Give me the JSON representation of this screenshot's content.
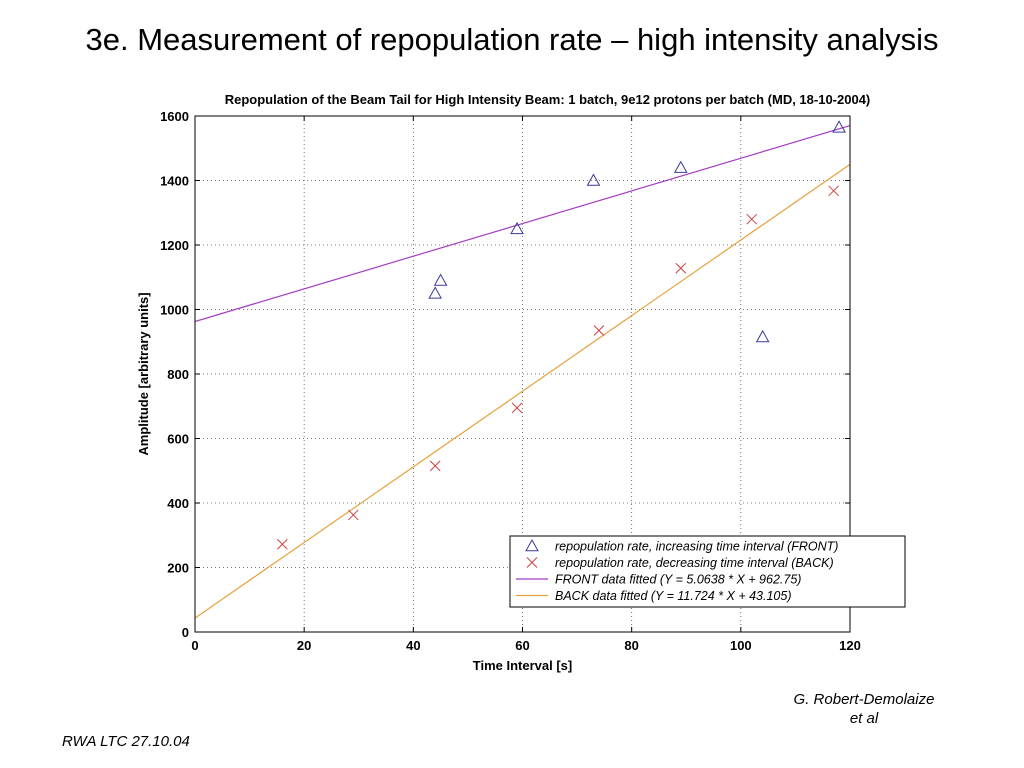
{
  "slide": {
    "title": "3e. Measurement of repopulation rate – high intensity analysis",
    "credit_line1": "G. Robert-Demolaize",
    "credit_line2": "et al",
    "footer": "RWA LTC 27.10.04"
  },
  "chart_data": {
    "type": "scatter",
    "title": "Repopulation of the Beam Tail for High Intensity Beam: 1 batch, 9e12 protons per batch (MD, 18-10-2004)",
    "xlabel": "Time Interval [s]",
    "ylabel": "Amplitude [arbitrary units]",
    "xlim": [
      0,
      120
    ],
    "ylim": [
      0,
      1600
    ],
    "xticks": [
      0,
      20,
      40,
      60,
      80,
      100,
      120
    ],
    "yticks": [
      0,
      200,
      400,
      600,
      800,
      1000,
      1200,
      1400,
      1600
    ],
    "grid": true,
    "legend_position": "bottom-right",
    "series": [
      {
        "name": "repopulation rate, increasing time interval (FRONT)",
        "marker": "triangle",
        "color": "#3a3a9a",
        "x": [
          44,
          45,
          59,
          73,
          89,
          104,
          118
        ],
        "y": [
          1050,
          1090,
          1250,
          1400,
          1440,
          915,
          1565
        ]
      },
      {
        "name": "repopulation rate, decreasing time interval (BACK)",
        "marker": "x",
        "color": "#cc4444",
        "x": [
          16,
          29,
          44,
          59,
          74,
          89,
          102,
          117
        ],
        "y": [
          272,
          363,
          515,
          695,
          935,
          1128,
          1280,
          1368
        ]
      }
    ],
    "fits": [
      {
        "name": "FRONT data fitted (Y = 5.0638 * X + 962.75)",
        "color": "#a43cc4",
        "slope": 5.0638,
        "intercept": 962.75
      },
      {
        "name": "BACK data fitted (Y = 11.724 * X + 43.105)",
        "color": "#e8a23c",
        "slope": 11.724,
        "intercept": 43.105
      }
    ]
  }
}
